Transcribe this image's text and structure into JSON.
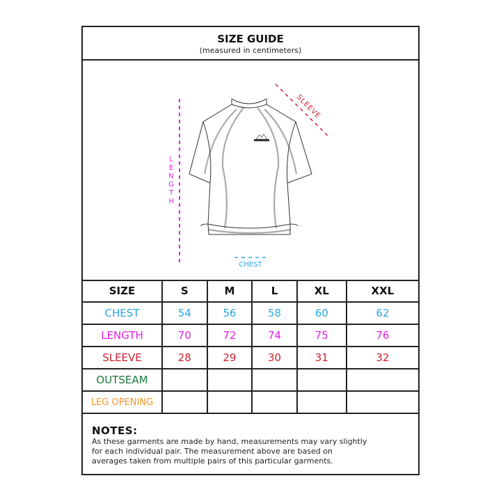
{
  "header": {
    "title": "SIZE GUIDE",
    "subtitle": "(measured in centimeters)"
  },
  "illustration": {
    "length_label": "LENGTH",
    "sleeve_label": "SLEEVE",
    "chest_label": "CHEST"
  },
  "colors": {
    "chest": "#29a8e0",
    "length": "#e61ee6",
    "sleeve": "#cf1f2e",
    "outseam": "#1a7a3a",
    "leg_opening": "#f7941d"
  },
  "table": {
    "headers": [
      "SIZE",
      "S",
      "M",
      "L",
      "XL",
      "XXL"
    ],
    "rows": [
      {
        "label": "CHEST",
        "values": [
          "54",
          "56",
          "58",
          "60",
          "62"
        ]
      },
      {
        "label": "LENGTH",
        "values": [
          "70",
          "72",
          "74",
          "75",
          "76"
        ]
      },
      {
        "label": "SLEEVE",
        "values": [
          "28",
          "29",
          "30",
          "31",
          "32"
        ]
      },
      {
        "label": "OUTSEAM",
        "values": [
          "",
          "",
          "",
          "",
          ""
        ]
      },
      {
        "label": "LEG OPENING",
        "values": [
          "",
          "",
          "",
          "",
          ""
        ]
      }
    ]
  },
  "notes": {
    "title": "NOTES:",
    "text": "As these garments are made by hand, measurements may vary slightly for each individual pair. The measurement above are based on averages taken from multiple pairs of this particular garments."
  }
}
